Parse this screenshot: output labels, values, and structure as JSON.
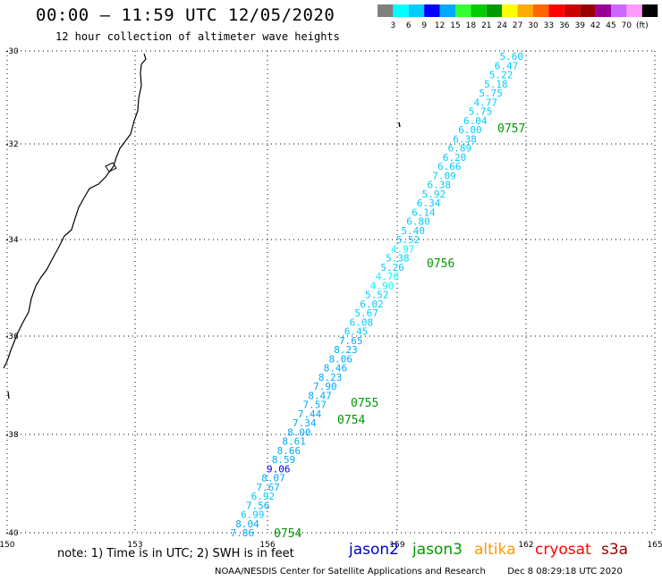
{
  "header": {
    "title": "00:00 – 11:59 UTC 12/05/2020",
    "subtitle": "12 hour collection of altimeter wave heights"
  },
  "color_scale": {
    "swatches": [
      "#808080",
      "#00ffff",
      "#00ccff",
      "#0000ff",
      "#00aaff",
      "#33ff33",
      "#00cc00",
      "#009900",
      "#ffff00",
      "#ffaa00",
      "#ff6600",
      "#ff0000",
      "#cc0000",
      "#990000",
      "#990099",
      "#cc66ff",
      "#ff99ff",
      "#000000"
    ],
    "labels": [
      "3",
      "6",
      "9",
      "12",
      "15",
      "18",
      "21",
      "24",
      "27",
      "30",
      "33",
      "36",
      "39",
      "42",
      "45",
      "70",
      "(ft)"
    ]
  },
  "axes": {
    "lat_labels": [
      "-30",
      "-32",
      "-34",
      "-36",
      "-38",
      "-40"
    ],
    "lon_labels": [
      "150",
      "153",
      "156",
      "159",
      "162",
      "165"
    ]
  },
  "track": {
    "values": [
      "5.60",
      "6.47",
      "5.22",
      "5.18",
      "5.75",
      "4.77",
      "5.75",
      "6.04",
      "6.00",
      "6.38",
      "6.89",
      "6.20",
      "6.66",
      "7.09",
      "6.38",
      "5.92",
      "6.34",
      "6.14",
      "6.80",
      "5.40",
      "5.52",
      "4.97",
      "5.38",
      "5.26",
      "4.76",
      "4.90",
      "5.52",
      "6.02",
      "5.67",
      "6.08",
      "6.45",
      "7.65",
      "8.23",
      "8.06",
      "8.46",
      "8.23",
      "7.90",
      "8.47",
      "7.57",
      "7.44",
      "7.34",
      "8.00",
      "8.61",
      "8.66",
      "8.59",
      "9.06",
      "8.07",
      "7.67",
      "6.92",
      "7.56",
      "6.99",
      "8.04",
      "7.86"
    ],
    "colors": [
      "#00ccff",
      "#00ccff",
      "#00ccff",
      "#00ccff",
      "#00ccff",
      "#00ccff",
      "#00ccff",
      "#00ccff",
      "#00ccff",
      "#00ccff",
      "#00ccff",
      "#00ccff",
      "#00ccff",
      "#00ccff",
      "#00ccff",
      "#00ccff",
      "#00ccff",
      "#00ccff",
      "#00ccff",
      "#00ccff",
      "#00ccff",
      "#00ffff",
      "#00ccff",
      "#00ccff",
      "#00ffff",
      "#00ffff",
      "#00ccff",
      "#00ccff",
      "#00ccff",
      "#00ccff",
      "#00ccff",
      "#00aaff",
      "#00aaff",
      "#00aaff",
      "#00aaff",
      "#00aaff",
      "#00aaff",
      "#00aaff",
      "#00aaff",
      "#00aaff",
      "#00aaff",
      "#00aaff",
      "#00aaff",
      "#00aaff",
      "#00aaff",
      "#0000ff",
      "#00aaff",
      "#00aaff",
      "#00ccff",
      "#00aaff",
      "#00ccff",
      "#00aaff",
      "#00aaff"
    ],
    "time_labels": [
      "0757",
      "0756",
      "0755",
      "0754",
      "0754"
    ],
    "time_color": "#009900"
  },
  "footer": {
    "note": "note: 1) Time is in UTC; 2) SWH is in feet",
    "satellites": [
      {
        "name": "jason2",
        "color": "#0000cc"
      },
      {
        "name": "jason3",
        "color": "#009900"
      },
      {
        "name": "altika",
        "color": "#ff9900"
      },
      {
        "name": "cryosat",
        "color": "#ff0000"
      },
      {
        "name": "s3a",
        "color": "#990000"
      }
    ],
    "credit": "NOAA/NESDIS Center for Satellite Applications and Research",
    "timestamp": "Dec  8 08:29:18 UTC 2020"
  }
}
